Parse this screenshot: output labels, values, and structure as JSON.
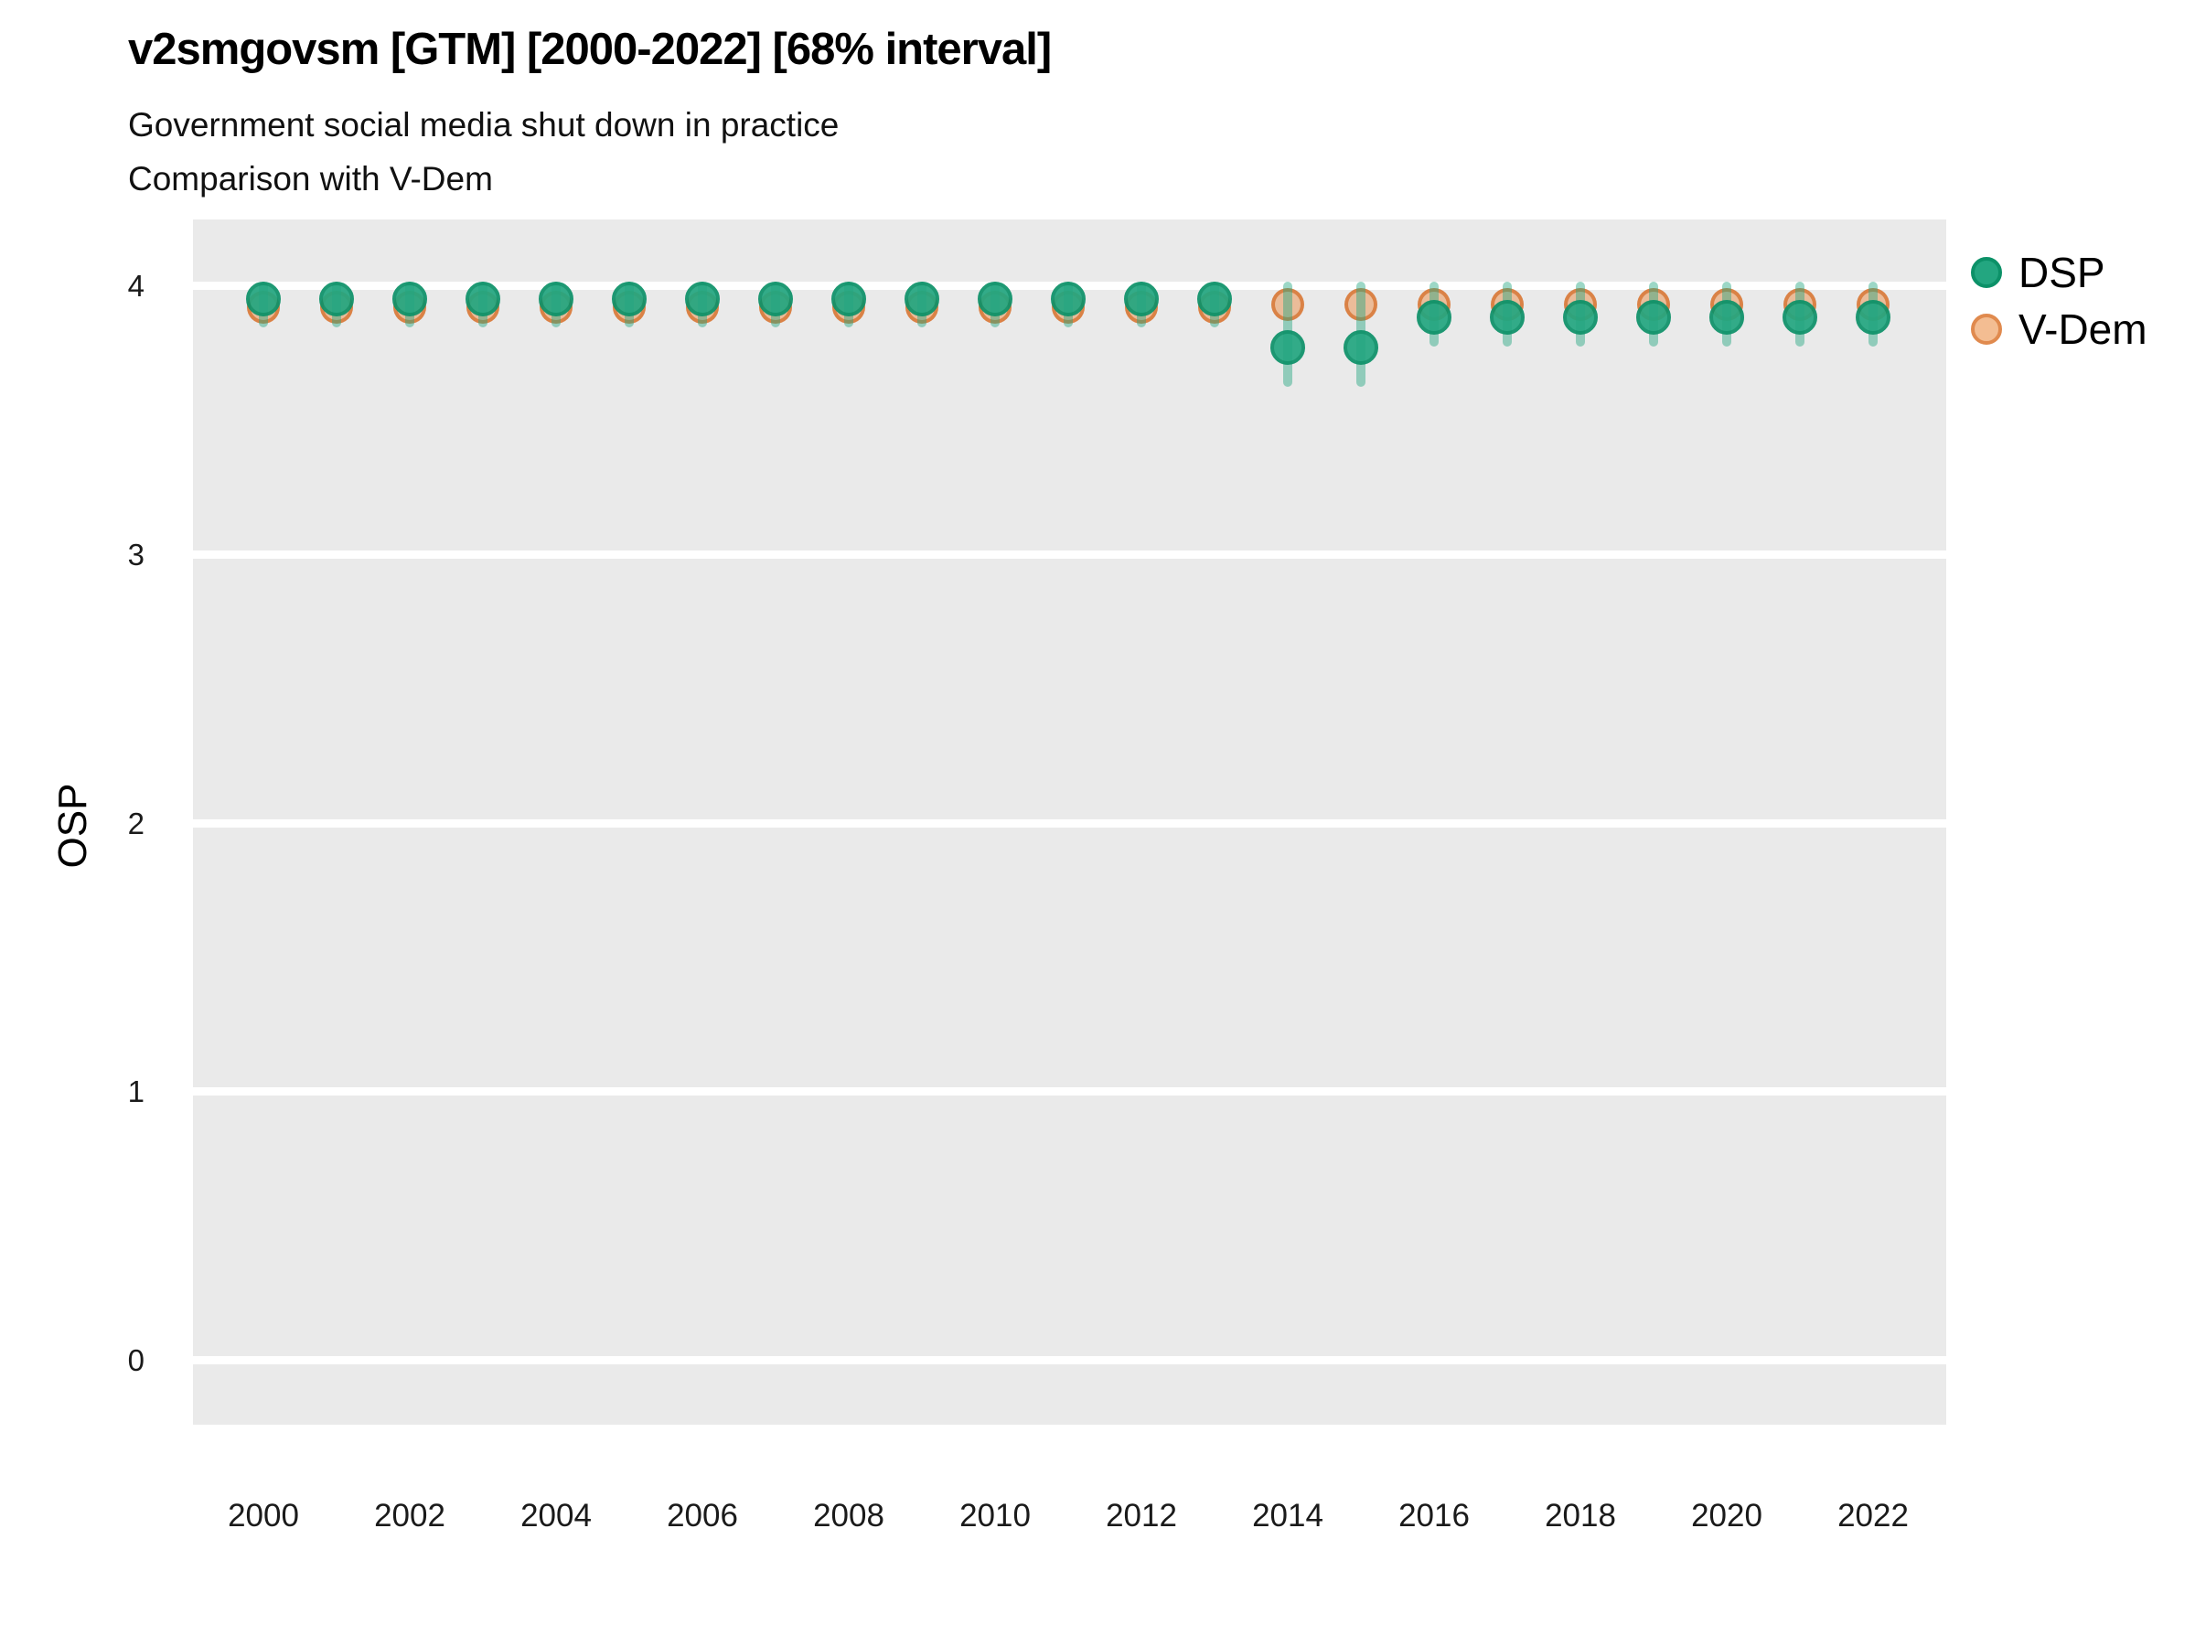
{
  "header": {
    "title": "v2smgovsm [GTM] [2000-2022] [68% interval]",
    "subtitle_line1": "Government social media shut down in practice",
    "subtitle_line2": "Comparison with V-Dem"
  },
  "legend": {
    "items": [
      {
        "id": "dsp",
        "label": "DSP",
        "fill": "#23a680",
        "stroke": "#0c9168"
      },
      {
        "id": "vdem",
        "label": "V-Dem",
        "fill": "#f3bd92",
        "stroke": "#e08a4e"
      }
    ]
  },
  "colors": {
    "panel_background": "#eaeaea",
    "gridline": "#ffffff",
    "dsp_fill": "#23a680",
    "dsp_stroke": "#0c9168",
    "dsp_interval": "rgba(35,166,128,0.45)",
    "vdem_fill": "rgba(235,150,85,0.55)",
    "vdem_stroke": "rgba(215,120,55,0.85)"
  },
  "chart_data": {
    "type": "scatter",
    "title": "v2smgovsm [GTM] [2000-2022] [68% interval]",
    "subtitle": [
      "Government social media shut down in practice",
      "Comparison with V-Dem"
    ],
    "xlabel": "",
    "ylabel": "OSP",
    "interval": "68%",
    "grid": "major-horizontal-white-on-gray",
    "legend_position": "right-top",
    "ylim": [
      -0.25,
      4.25
    ],
    "y_ticks": [
      0,
      1,
      2,
      3,
      4
    ],
    "x_ticks": [
      2000,
      2002,
      2004,
      2006,
      2008,
      2010,
      2012,
      2014,
      2016,
      2018,
      2020,
      2022
    ],
    "series": [
      {
        "name": "DSP",
        "style": "point-with-interval"
      },
      {
        "name": "V-Dem",
        "style": "point"
      }
    ],
    "points": [
      {
        "year": 2000,
        "dsp": 3.95,
        "dsp_lo": 3.86,
        "dsp_hi": 4.0,
        "vdem": 3.92
      },
      {
        "year": 2001,
        "dsp": 3.95,
        "dsp_lo": 3.86,
        "dsp_hi": 4.0,
        "vdem": 3.92
      },
      {
        "year": 2002,
        "dsp": 3.95,
        "dsp_lo": 3.86,
        "dsp_hi": 4.0,
        "vdem": 3.92
      },
      {
        "year": 2003,
        "dsp": 3.95,
        "dsp_lo": 3.86,
        "dsp_hi": 4.0,
        "vdem": 3.92
      },
      {
        "year": 2004,
        "dsp": 3.95,
        "dsp_lo": 3.86,
        "dsp_hi": 4.0,
        "vdem": 3.92
      },
      {
        "year": 2005,
        "dsp": 3.95,
        "dsp_lo": 3.86,
        "dsp_hi": 4.0,
        "vdem": 3.92
      },
      {
        "year": 2006,
        "dsp": 3.95,
        "dsp_lo": 3.86,
        "dsp_hi": 4.0,
        "vdem": 3.92
      },
      {
        "year": 2007,
        "dsp": 3.95,
        "dsp_lo": 3.86,
        "dsp_hi": 4.0,
        "vdem": 3.92
      },
      {
        "year": 2008,
        "dsp": 3.95,
        "dsp_lo": 3.86,
        "dsp_hi": 4.0,
        "vdem": 3.92
      },
      {
        "year": 2009,
        "dsp": 3.95,
        "dsp_lo": 3.86,
        "dsp_hi": 4.0,
        "vdem": 3.92
      },
      {
        "year": 2010,
        "dsp": 3.95,
        "dsp_lo": 3.86,
        "dsp_hi": 4.0,
        "vdem": 3.92
      },
      {
        "year": 2011,
        "dsp": 3.95,
        "dsp_lo": 3.86,
        "dsp_hi": 4.0,
        "vdem": 3.92
      },
      {
        "year": 2012,
        "dsp": 3.95,
        "dsp_lo": 3.86,
        "dsp_hi": 4.0,
        "vdem": 3.92
      },
      {
        "year": 2013,
        "dsp": 3.95,
        "dsp_lo": 3.86,
        "dsp_hi": 4.0,
        "vdem": 3.92
      },
      {
        "year": 2014,
        "dsp": 3.77,
        "dsp_lo": 3.64,
        "dsp_hi": 4.0,
        "vdem": 3.93
      },
      {
        "year": 2015,
        "dsp": 3.77,
        "dsp_lo": 3.64,
        "dsp_hi": 4.0,
        "vdem": 3.93
      },
      {
        "year": 2016,
        "dsp": 3.88,
        "dsp_lo": 3.79,
        "dsp_hi": 4.0,
        "vdem": 3.93
      },
      {
        "year": 2017,
        "dsp": 3.88,
        "dsp_lo": 3.79,
        "dsp_hi": 4.0,
        "vdem": 3.93
      },
      {
        "year": 2018,
        "dsp": 3.88,
        "dsp_lo": 3.79,
        "dsp_hi": 4.0,
        "vdem": 3.93
      },
      {
        "year": 2019,
        "dsp": 3.88,
        "dsp_lo": 3.79,
        "dsp_hi": 4.0,
        "vdem": 3.93
      },
      {
        "year": 2020,
        "dsp": 3.88,
        "dsp_lo": 3.79,
        "dsp_hi": 4.0,
        "vdem": 3.93
      },
      {
        "year": 2021,
        "dsp": 3.88,
        "dsp_lo": 3.79,
        "dsp_hi": 4.0,
        "vdem": 3.93
      },
      {
        "year": 2022,
        "dsp": 3.88,
        "dsp_lo": 3.79,
        "dsp_hi": 4.0,
        "vdem": 3.93
      }
    ]
  }
}
